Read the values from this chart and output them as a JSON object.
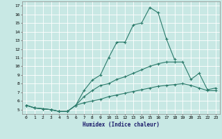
{
  "xlabel": "Humidex (Indice chaleur)",
  "background_color": "#c8e8e4",
  "grid_color": "#ffffff",
  "line_color": "#2a7a6a",
  "xlim": [
    -0.5,
    23.5
  ],
  "ylim": [
    4.5,
    17.5
  ],
  "xticks": [
    0,
    1,
    2,
    3,
    4,
    5,
    6,
    7,
    8,
    9,
    10,
    11,
    12,
    13,
    14,
    15,
    16,
    17,
    18,
    19,
    20,
    21,
    22,
    23
  ],
  "yticks": [
    5,
    6,
    7,
    8,
    9,
    10,
    11,
    12,
    13,
    14,
    15,
    16,
    17
  ],
  "curve1_x": [
    0,
    1,
    2,
    3,
    4,
    5,
    6,
    7,
    8,
    9,
    10,
    11,
    12,
    13,
    14,
    15,
    16,
    17,
    18,
    19,
    20,
    21,
    22,
    23
  ],
  "curve1_y": [
    5.5,
    5.2,
    5.1,
    5.0,
    4.8,
    4.8,
    5.5,
    7.2,
    8.4,
    9.0,
    11.0,
    12.8,
    12.8,
    14.8,
    15.0,
    16.8,
    16.2,
    13.2,
    10.8,
    null,
    null,
    null,
    null,
    null
  ],
  "curve2_x": [
    0,
    1,
    2,
    3,
    4,
    5,
    6,
    7,
    8,
    9,
    10,
    11,
    12,
    13,
    14,
    15,
    16,
    17,
    18,
    19,
    20,
    21,
    22,
    23
  ],
  "curve2_y": [
    5.5,
    5.2,
    5.1,
    5.0,
    4.8,
    4.8,
    5.5,
    6.5,
    7.2,
    7.8,
    8.0,
    8.5,
    8.8,
    9.2,
    9.6,
    10.0,
    10.3,
    10.5,
    10.5,
    10.5,
    8.5,
    9.2,
    7.3,
    7.5
  ],
  "curve3_x": [
    0,
    1,
    2,
    3,
    4,
    5,
    6,
    7,
    8,
    9,
    10,
    11,
    12,
    13,
    14,
    15,
    16,
    17,
    18,
    19,
    20,
    21,
    22,
    23
  ],
  "curve3_y": [
    5.5,
    5.2,
    5.1,
    5.0,
    4.8,
    4.8,
    5.5,
    5.8,
    6.0,
    6.2,
    6.5,
    6.7,
    6.9,
    7.1,
    7.3,
    7.5,
    7.7,
    7.8,
    7.9,
    8.0,
    7.8,
    7.5,
    7.2,
    7.2
  ]
}
